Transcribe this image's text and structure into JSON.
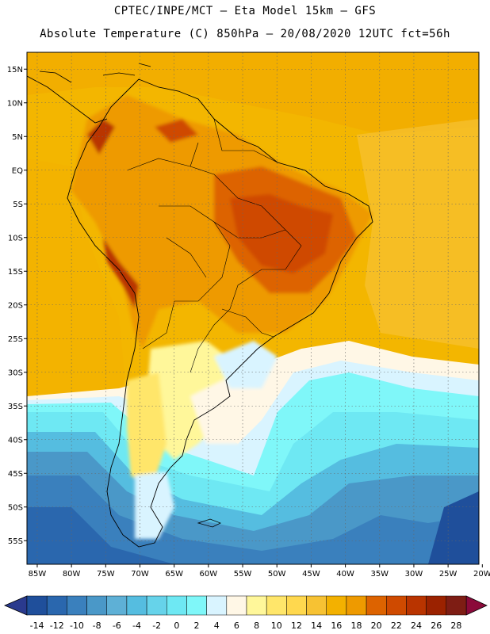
{
  "header": {
    "line1": "CPTEC/INPE/MCT –  Eta Model 15km – GFS",
    "line2": "Absolute Temperature (C) 850hPa – 20/08/2020 12UTC fct=56h"
  },
  "map": {
    "lat_labels": [
      "15N",
      "10N",
      "5N",
      "EQ",
      "5S",
      "10S",
      "15S",
      "20S",
      "25S",
      "30S",
      "35S",
      "40S",
      "45S",
      "50S",
      "55S"
    ],
    "lat_values": [
      15,
      10,
      5,
      0,
      -5,
      -10,
      -15,
      -20,
      -25,
      -30,
      -35,
      -40,
      -45,
      -50,
      -55
    ],
    "lon_labels": [
      "85W",
      "80W",
      "75W",
      "70W",
      "65W",
      "60W",
      "55W",
      "50W",
      "45W",
      "40W",
      "35W",
      "30W",
      "25W",
      "20W"
    ],
    "lon_values": [
      -85,
      -80,
      -75,
      -70,
      -65,
      -60,
      -55,
      -50,
      -45,
      -40,
      -35,
      -30,
      -25,
      -20
    ],
    "lat_range": [
      -58.5,
      17.5
    ],
    "lon_range": [
      -86.5,
      -20.5
    ],
    "background_color": "#f3b600"
  },
  "colorbar": {
    "labels": [
      "-14",
      "-12",
      "-10",
      "-8",
      "-6",
      "-4",
      "-2",
      "0",
      "2",
      "4",
      "6",
      "8",
      "10",
      "12",
      "14",
      "16",
      "18",
      "20",
      "22",
      "24",
      "26",
      "28"
    ],
    "colors": [
      "#1f4f9b",
      "#2a67ae",
      "#3a80bd",
      "#4a98c8",
      "#5eb0d6",
      "#55bde0",
      "#66d3ea",
      "#6ee8f3",
      "#7ff7f9",
      "#d9f4ff",
      "#fff7e6",
      "#fff79a",
      "#ffe66a",
      "#ffd84e",
      "#f7c233",
      "#f3b100",
      "#ee9a00",
      "#dd6300",
      "#cf4a00",
      "#b93400",
      "#9b2200",
      "#7e1d14"
    ],
    "under_color": "#2a3a8e",
    "over_color": "#8b0a3a"
  }
}
